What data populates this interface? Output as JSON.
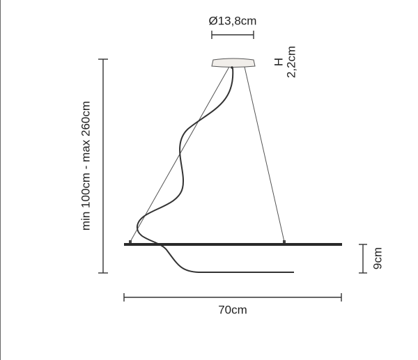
{
  "dimensions": {
    "diameter": "Ø13,8cm",
    "canopy_height": {
      "label": "H",
      "value": "2,2cm"
    },
    "suspension_length": "min 100cm - max 260cm",
    "height": "9cm",
    "width": "70cm"
  }
}
